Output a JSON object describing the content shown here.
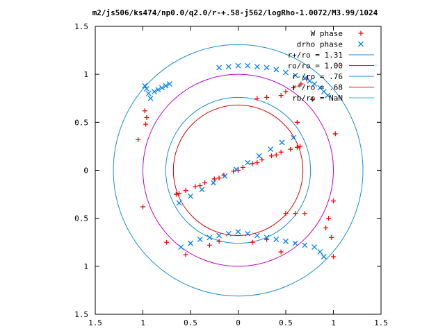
{
  "chart_data": {
    "type": "scatter",
    "title": "m2/js506/ks474/np0.0/q2.0/r-+.58-j562/logRho-1.0072/M3.99/1024",
    "xlim": [
      -1.5,
      1.5
    ],
    "ylim": [
      -1.5,
      1.5
    ],
    "x_tick_labels": [
      "1.5",
      "1",
      "0.5",
      "0",
      "0.5",
      "1",
      "1.5"
    ],
    "y_tick_labels": [
      "1.5",
      "1",
      "0.5",
      "0",
      "0.5",
      "1",
      "1.5"
    ],
    "x_ticks": [
      -1.5,
      -1,
      -0.5,
      0,
      0.5,
      1,
      1.5
    ],
    "y_ticks": [
      1.5,
      1,
      0.5,
      0,
      -0.5,
      -1,
      -1.5
    ],
    "grid": false,
    "legend_position": "top-right",
    "legend": [
      {
        "label": "W phase",
        "marker": "plus",
        "color": "#ff0000"
      },
      {
        "label": "drho phase",
        "marker": "cross",
        "color": "#0080ff"
      },
      {
        "label": "r+/ro = 1.31",
        "line": true,
        "color": "#1a8fd0"
      },
      {
        "label": "ro/ro = 1.00",
        "line": true,
        "color": "#c000c0"
      },
      {
        "label": "r-/ro = .76",
        "line": true,
        "color": "#1a8fd0"
      },
      {
        "label": "r*/ro = .68",
        "line": true,
        "color": "#cc0000"
      },
      {
        "label": "rb/ro = NaN",
        "line": true,
        "color": "#20c0c0"
      }
    ],
    "circles": [
      {
        "name": "r+/ro = 1.31",
        "r": 1.31,
        "color": "#1a8fd0"
      },
      {
        "name": "ro/ro = 1.00",
        "r": 1.0,
        "color": "#c000c0"
      },
      {
        "name": "r-/ro = .76",
        "r": 0.76,
        "color": "#1a8fd0"
      },
      {
        "name": "r*/ro = .68",
        "r": 0.68,
        "color": "#cc0000"
      }
    ],
    "series": [
      {
        "name": "W phase",
        "marker": "plus",
        "color": "#ff0000",
        "x": [
          -0.65,
          -0.55,
          -0.45,
          -0.35,
          -0.25,
          -0.15,
          -0.05,
          0.05,
          0.15,
          0.25,
          0.35,
          0.45,
          0.55,
          0.65,
          -0.62,
          -0.4,
          -0.2,
          0.0,
          0.2,
          0.4,
          0.62,
          -1.05,
          -1.0,
          -0.97,
          -0.96,
          -0.98,
          -0.75,
          -0.55,
          -0.3,
          -0.2,
          0.2,
          0.3,
          0.45,
          0.5,
          0.58,
          0.66,
          0.72,
          0.78,
          1.02,
          1.0,
          0.95,
          0.92,
          0.98,
          1.0,
          0.7,
          0.6,
          0.45,
          0.3,
          0.15,
          0.5,
          0.62
        ],
        "y": [
          -0.25,
          -0.21,
          -0.17,
          -0.13,
          -0.09,
          -0.05,
          -0.01,
          0.03,
          0.07,
          0.11,
          0.15,
          0.19,
          0.22,
          0.25,
          -0.24,
          -0.16,
          -0.08,
          0.0,
          0.08,
          0.16,
          0.24,
          0.32,
          -0.38,
          0.48,
          0.55,
          0.62,
          -0.75,
          -0.88,
          -0.78,
          -0.74,
          0.75,
          0.76,
          0.78,
          0.82,
          0.86,
          0.9,
          0.95,
          0.74,
          0.38,
          -0.32,
          -0.5,
          -0.6,
          -0.7,
          -0.9,
          -0.45,
          -0.45,
          -0.85,
          -0.72,
          -0.75,
          -0.45,
          0.5
        ]
      },
      {
        "name": "drho phase",
        "marker": "cross",
        "color": "#0080ff",
        "x": [
          -0.62,
          -0.5,
          -0.38,
          -0.26,
          -0.14,
          -0.02,
          0.1,
          0.22,
          0.34,
          0.46,
          0.58,
          -0.98,
          -0.96,
          -0.94,
          -0.92,
          -0.88,
          -0.84,
          -0.8,
          -0.76,
          -0.72,
          -0.6,
          -0.5,
          -0.4,
          -0.3,
          -0.2,
          -0.1,
          0.0,
          0.1,
          0.2,
          0.3,
          0.4,
          0.5,
          0.6,
          0.7,
          0.8,
          0.86,
          0.9,
          -0.2,
          -0.1,
          0.0,
          0.1,
          0.2,
          0.3,
          0.4,
          0.5,
          0.6,
          0.7,
          0.75,
          0.8,
          0.86,
          0.9,
          0.94
        ],
        "y": [
          -0.34,
          -0.27,
          -0.2,
          -0.13,
          -0.06,
          0.01,
          0.08,
          0.15,
          0.22,
          0.29,
          0.34,
          0.88,
          0.85,
          0.8,
          0.75,
          0.82,
          0.84,
          0.86,
          0.88,
          0.9,
          -0.8,
          -0.76,
          -0.72,
          -0.7,
          -0.68,
          -0.66,
          -0.64,
          -0.66,
          -0.68,
          -0.7,
          -0.72,
          -0.74,
          -0.76,
          -0.78,
          -0.8,
          -0.85,
          -0.9,
          1.07,
          1.08,
          1.09,
          1.09,
          1.08,
          1.07,
          1.05,
          1.02,
          0.99,
          0.96,
          0.93,
          0.9,
          0.86,
          0.82,
          0.78
        ]
      }
    ]
  }
}
